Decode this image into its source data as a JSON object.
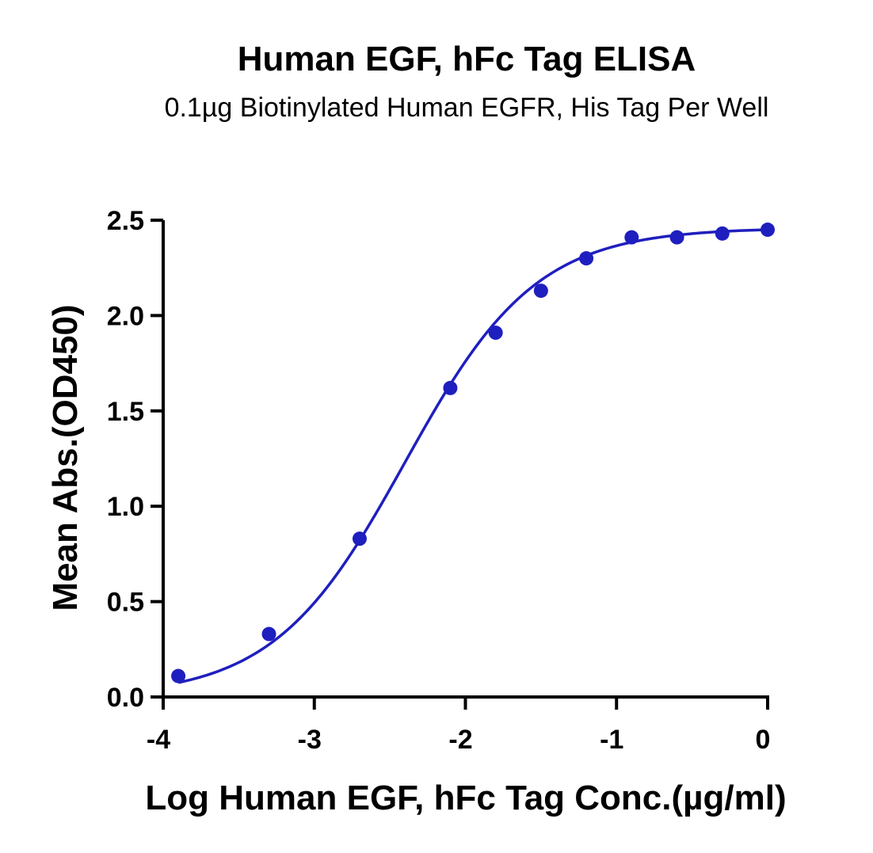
{
  "chart_data": {
    "type": "scatter",
    "title": "Human EGF, hFc Tag ELISA",
    "subtitle": "0.1µg Biotinylated Human EGFR, His Tag Per Well",
    "xlabel": "Log Human EGF, hFc Tag Conc.(µg/ml)",
    "ylabel": "Mean Abs.(OD450)",
    "xlim": [
      -4,
      0
    ],
    "ylim": [
      0,
      2.5
    ],
    "xticks": [
      -4,
      -3,
      -2,
      -1,
      0
    ],
    "xtick_labels": [
      "-4",
      "-3",
      "-2",
      "-1",
      "0"
    ],
    "yticks": [
      0,
      0.5,
      1,
      1.5,
      2,
      2.5
    ],
    "ytick_labels": [
      "0.0",
      "0.5",
      "1.0",
      "1.5",
      "2.0",
      "2.5"
    ],
    "grid": false,
    "series": [
      {
        "color": "#1f1fbf",
        "x": [
          -3.9,
          -3.3,
          -2.7,
          -2.1,
          -1.8,
          -1.5,
          -1.2,
          -0.9,
          -0.6,
          -0.3,
          0.0
        ],
        "y": [
          0.11,
          0.33,
          0.83,
          1.62,
          1.91,
          2.13,
          2.3,
          2.41,
          2.41,
          2.43,
          2.45
        ]
      }
    ],
    "fit_curve": {
      "model": "4PL",
      "bottom": 0.0,
      "top": 2.46,
      "log_ec50": -2.4,
      "hill": 1.0
    }
  }
}
